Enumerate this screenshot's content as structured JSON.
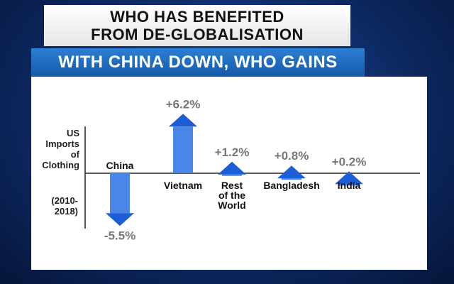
{
  "header": {
    "title_line1": "WHO HAS BENEFITED",
    "title_line2": "FROM DE-GLOBALISATION",
    "subtitle": "WITH CHINA DOWN, WHO GAINS"
  },
  "axis": {
    "ylabel_lines": [
      "US",
      "Imports",
      "of",
      "Clothing"
    ],
    "period_lines": [
      "(2010-",
      "2018)"
    ]
  },
  "colors": {
    "bar": "#4a86e8",
    "arrow": "#1d5dd6",
    "value_label": "#777777",
    "category_label": "#111111"
  },
  "chart_data": {
    "type": "bar",
    "title": "WHO HAS BENEFITED FROM DE-GLOBALISATION",
    "subtitle": "WITH CHINA DOWN, WHO GAINS",
    "ylabel": "US Imports of Clothing (2010-2018)",
    "categories": [
      {
        "label_lines": [
          "China"
        ]
      },
      {
        "label_lines": [
          "Vietnam"
        ]
      },
      {
        "label_lines": [
          "Rest",
          "of the",
          "World"
        ]
      },
      {
        "label_lines": [
          "Bangladesh"
        ]
      },
      {
        "label_lines": [
          "India"
        ]
      }
    ],
    "values": [
      -5.5,
      6.2,
      1.2,
      0.8,
      0.2
    ],
    "value_labels": [
      "-5.5%",
      "+6.2%",
      "+1.2%",
      "+0.8%",
      "+0.2%"
    ],
    "grid": false,
    "legend": "none"
  }
}
